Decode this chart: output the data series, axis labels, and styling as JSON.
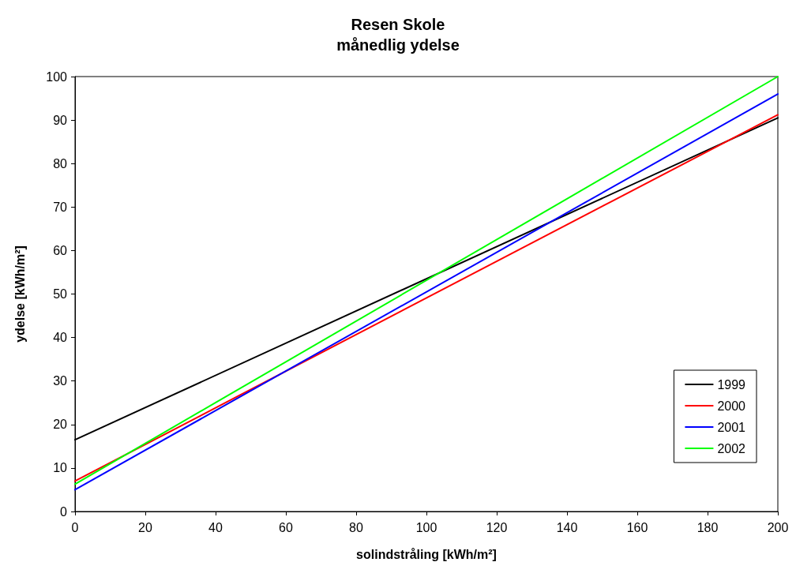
{
  "chart_data": {
    "type": "line",
    "title": "Resen Skole",
    "subtitle": "månedlig ydelse",
    "xlabel": "solindstråling [kWh/m²]",
    "ylabel": "ydelse [kWh/m²]",
    "x": [
      0,
      200
    ],
    "series": [
      {
        "name": "1999",
        "color": "#000000",
        "values": [
          16.5,
          90.5
        ]
      },
      {
        "name": "2000",
        "color": "#ff0000",
        "values": [
          7,
          91.2
        ]
      },
      {
        "name": "2001",
        "color": "#0000ff",
        "values": [
          5,
          96
        ]
      },
      {
        "name": "2002",
        "color": "#00ff00",
        "values": [
          6.3,
          100
        ]
      }
    ],
    "xlim": [
      0,
      200
    ],
    "xticks": [
      0,
      20,
      40,
      60,
      80,
      100,
      120,
      140,
      160,
      180,
      200
    ],
    "ylim": [
      0,
      100
    ],
    "yticks": [
      0,
      10,
      20,
      30,
      40,
      50,
      60,
      70,
      80,
      90,
      100
    ],
    "grid": false,
    "legend": "bottom right",
    "marker": "none",
    "line_style": "solid"
  }
}
